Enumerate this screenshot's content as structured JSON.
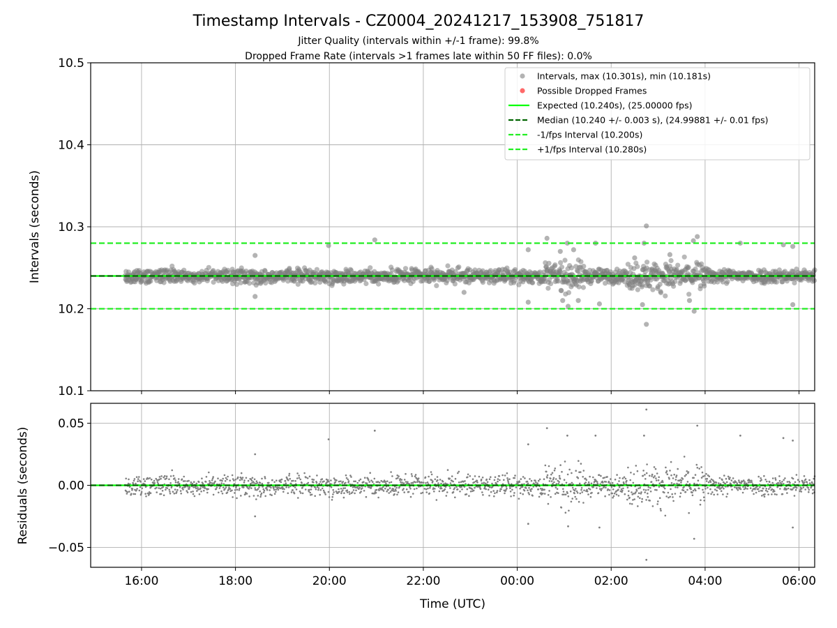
{
  "figure": {
    "title": "Timestamp Intervals - CZ0004_20241217_153908_751817",
    "subtitle_1": "Jitter Quality (intervals within +/-1 frame): 99.8%",
    "subtitle_2": "Dropped Frame Rate (intervals >1 frames late within 50 FF files): 0.0%",
    "xlabel": "Time (UTC)"
  },
  "colors": {
    "points": "#808080",
    "dropped": "#ff4444",
    "expected": "#00ff00",
    "median": "#006400",
    "bound": "#22ee22",
    "grid": "#b0b0b0"
  },
  "chart_data": [
    {
      "type": "scatter",
      "ylabel": "Intervals (seconds)",
      "ylim": [
        10.1,
        10.5
      ],
      "y_ticks": [
        10.1,
        10.2,
        10.3,
        10.4,
        10.5
      ],
      "y_tick_labels": [
        "10.1",
        "10.2",
        "10.3",
        "10.4",
        "10.5"
      ],
      "x_ticks": [
        "16:00",
        "18:00",
        "20:00",
        "22:00",
        "00:00",
        "02:00",
        "04:00",
        "06:00"
      ],
      "xlim": [
        "2024-12-17T14:55",
        "2024-12-18T06:20"
      ],
      "grid": true,
      "legend_position": "top-right",
      "legend": [
        "Intervals, max (10.301s), min (10.181s)",
        "Possible Dropped Frames",
        "Expected (10.240s), (25.00000 fps)",
        "Median (10.240 +/- 0.003 s), (24.99881 +/- 0.01 fps)",
        "-1/fps Interval (10.200s)",
        "+1/fps Interval (10.280s)"
      ],
      "reference_lines": {
        "expected": 10.24,
        "median": 10.24,
        "minus_one_frame": 10.2,
        "plus_one_frame": 10.28
      },
      "series_range": {
        "start": "2024-12-17T15:39",
        "end": "2024-12-18T06:20"
      },
      "notable_points": [
        {
          "x": "2024-12-17T18:25",
          "y": 10.265
        },
        {
          "x": "2024-12-17T18:25",
          "y": 10.215
        },
        {
          "x": "2024-12-17T19:59",
          "y": 10.277
        },
        {
          "x": "2024-12-17T20:58",
          "y": 10.284
        },
        {
          "x": "2024-12-17T22:52",
          "y": 10.22
        },
        {
          "x": "2024-12-18T00:14",
          "y": 10.272
        },
        {
          "x": "2024-12-18T00:14",
          "y": 10.208
        },
        {
          "x": "2024-12-18T00:38",
          "y": 10.286
        },
        {
          "x": "2024-12-18T00:55",
          "y": 10.27
        },
        {
          "x": "2024-12-18T00:58",
          "y": 10.21
        },
        {
          "x": "2024-12-18T01:04",
          "y": 10.28
        },
        {
          "x": "2024-12-18T01:05",
          "y": 10.203
        },
        {
          "x": "2024-12-18T01:12",
          "y": 10.272
        },
        {
          "x": "2024-12-18T01:18",
          "y": 10.21
        },
        {
          "x": "2024-12-18T01:40",
          "y": 10.28
        },
        {
          "x": "2024-12-18T01:45",
          "y": 10.206
        },
        {
          "x": "2024-12-18T02:30",
          "y": 10.262
        },
        {
          "x": "2024-12-18T02:40",
          "y": 10.205
        },
        {
          "x": "2024-12-18T02:42",
          "y": 10.28
        },
        {
          "x": "2024-12-18T02:45",
          "y": 10.301
        },
        {
          "x": "2024-12-18T02:45",
          "y": 10.181
        },
        {
          "x": "2024-12-18T03:15",
          "y": 10.266
        },
        {
          "x": "2024-12-18T03:40",
          "y": 10.21
        },
        {
          "x": "2024-12-18T03:45",
          "y": 10.283
        },
        {
          "x": "2024-12-18T03:46",
          "y": 10.197
        },
        {
          "x": "2024-12-18T03:50",
          "y": 10.288
        },
        {
          "x": "2024-12-18T04:45",
          "y": 10.28
        },
        {
          "x": "2024-12-18T05:40",
          "y": 10.278
        },
        {
          "x": "2024-12-18T05:52",
          "y": 10.276
        },
        {
          "x": "2024-12-18T05:52",
          "y": 10.205
        }
      ]
    },
    {
      "type": "scatter",
      "ylabel": "Residuals (seconds)",
      "ylim": [
        -0.066,
        0.066
      ],
      "y_ticks": [
        -0.05,
        0.0,
        0.05
      ],
      "y_tick_labels": [
        "−0.05",
        "0.00",
        "0.05"
      ],
      "x_ticks": [
        "16:00",
        "18:00",
        "20:00",
        "22:00",
        "00:00",
        "02:00",
        "04:00",
        "06:00"
      ],
      "xlim": [
        "2024-12-17T14:55",
        "2024-12-18T06:20"
      ],
      "grid": true,
      "reference_lines": {
        "zero": 0.0
      },
      "series_range": {
        "start": "2024-12-17T15:39",
        "end": "2024-12-18T06:20"
      },
      "notable_points": [
        {
          "x": "2024-12-17T18:25",
          "y": 0.025
        },
        {
          "x": "2024-12-17T18:25",
          "y": -0.025
        },
        {
          "x": "2024-12-17T19:59",
          "y": 0.037
        },
        {
          "x": "2024-12-17T20:58",
          "y": 0.044
        },
        {
          "x": "2024-12-18T00:14",
          "y": 0.033
        },
        {
          "x": "2024-12-18T00:14",
          "y": -0.031
        },
        {
          "x": "2024-12-18T00:38",
          "y": 0.046
        },
        {
          "x": "2024-12-18T01:04",
          "y": 0.04
        },
        {
          "x": "2024-12-18T01:05",
          "y": -0.033
        },
        {
          "x": "2024-12-18T01:40",
          "y": 0.04
        },
        {
          "x": "2024-12-18T01:45",
          "y": -0.034
        },
        {
          "x": "2024-12-18T02:42",
          "y": 0.04
        },
        {
          "x": "2024-12-18T02:45",
          "y": 0.061
        },
        {
          "x": "2024-12-18T02:45",
          "y": -0.06
        },
        {
          "x": "2024-12-18T03:46",
          "y": -0.043
        },
        {
          "x": "2024-12-18T03:50",
          "y": 0.048
        },
        {
          "x": "2024-12-18T04:45",
          "y": 0.04
        },
        {
          "x": "2024-12-18T05:40",
          "y": 0.038
        },
        {
          "x": "2024-12-18T05:52",
          "y": 0.036
        },
        {
          "x": "2024-12-18T05:52",
          "y": -0.034
        }
      ]
    }
  ]
}
